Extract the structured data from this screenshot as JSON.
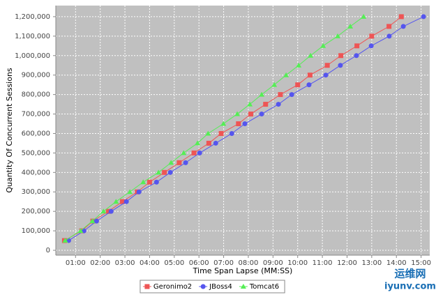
{
  "chart_data": {
    "type": "line",
    "y_label": "Quantity Of Concurrent Sessions",
    "x_label": "Time Span Lapse (MM:SS)",
    "xlim": [
      0.2,
      15.35
    ],
    "ylim": [
      -25000,
      1257000
    ],
    "grid": true,
    "legend": "bottom",
    "xticks": [
      {
        "value": 1,
        "label": "01:00"
      },
      {
        "value": 2,
        "label": "02:00"
      },
      {
        "value": 3,
        "label": "03:00"
      },
      {
        "value": 4,
        "label": "04:00"
      },
      {
        "value": 5,
        "label": "05:00"
      },
      {
        "value": 6,
        "label": "06:00"
      },
      {
        "value": 7,
        "label": "07:00"
      },
      {
        "value": 8,
        "label": "08:00"
      },
      {
        "value": 9,
        "label": "09:00"
      },
      {
        "value": 10,
        "label": "10:00"
      },
      {
        "value": 11,
        "label": "11:00"
      },
      {
        "value": 12,
        "label": "12:00"
      },
      {
        "value": 13,
        "label": "13:00"
      },
      {
        "value": 14,
        "label": "14:00"
      },
      {
        "value": 15,
        "label": "15:00"
      }
    ],
    "yticks": [
      0,
      {
        "value": 100000,
        "label": "100,000"
      },
      {
        "value": 200000,
        "label": "200,000"
      },
      {
        "value": 300000,
        "label": "300,000"
      },
      {
        "value": 400000,
        "label": "400,000"
      },
      {
        "value": 500000,
        "label": "500,000"
      },
      {
        "value": 600000,
        "label": "600,000"
      },
      {
        "value": 700000,
        "label": "700,000"
      },
      {
        "value": 800000,
        "label": "800,000"
      },
      {
        "value": 900000,
        "label": "900,000"
      },
      {
        "value": 1000000,
        "label": "1,000,000"
      },
      {
        "value": 1100000,
        "label": "1,100,000"
      },
      {
        "value": 1200000,
        "label": "1,200,000"
      }
    ],
    "series": [
      {
        "name": "Geronimo2",
        "color": "#ee5555",
        "marker": "square",
        "x": [
          0.55,
          1.25,
          1.7,
          2.33,
          2.9,
          3.5,
          4.0,
          4.6,
          5.2,
          5.8,
          6.4,
          6.9,
          7.6,
          8.1,
          8.7,
          9.3,
          10.0,
          10.5,
          11.2,
          11.75,
          12.4,
          13.0,
          13.7,
          14.2
        ],
        "values": [
          50000,
          100000,
          150000,
          200000,
          250000,
          300000,
          350000,
          400000,
          450000,
          500000,
          550000,
          600000,
          650000,
          700000,
          750000,
          800000,
          850000,
          900000,
          950000,
          1000000,
          1050000,
          1100000,
          1150000,
          1200000
        ]
      },
      {
        "name": "JBoss4",
        "color": "#5555ee",
        "marker": "circle",
        "x": [
          0.72,
          1.34,
          1.85,
          2.44,
          3.06,
          3.57,
          4.28,
          4.84,
          5.46,
          6.03,
          6.68,
          7.33,
          7.86,
          8.54,
          9.22,
          9.76,
          10.46,
          11.14,
          11.73,
          12.38,
          12.98,
          13.71,
          14.28,
          15.1
        ],
        "values": [
          50000,
          100000,
          150000,
          200000,
          250000,
          300000,
          350000,
          400000,
          450000,
          500000,
          550000,
          600000,
          650000,
          700000,
          750000,
          800000,
          850000,
          900000,
          950000,
          1000000,
          1050000,
          1100000,
          1150000,
          1200000
        ]
      },
      {
        "name": "Tomcat6",
        "color": "#55ee55",
        "marker": "triangle",
        "x": [
          0.58,
          1.2,
          1.68,
          2.13,
          2.64,
          3.2,
          3.74,
          4.36,
          4.87,
          5.38,
          5.94,
          6.37,
          6.99,
          7.55,
          8.06,
          8.54,
          9.05,
          9.53,
          10.04,
          10.52,
          11.03,
          11.62,
          12.13,
          12.67
        ],
        "values": [
          50000,
          100000,
          150000,
          200000,
          250000,
          300000,
          350000,
          400000,
          450000,
          500000,
          550000,
          600000,
          650000,
          700000,
          750000,
          800000,
          850000,
          900000,
          950000,
          1000000,
          1050000,
          1100000,
          1150000,
          1200000
        ]
      }
    ]
  },
  "watermark": {
    "cn": "运维网",
    "url": "iyunv.com"
  }
}
